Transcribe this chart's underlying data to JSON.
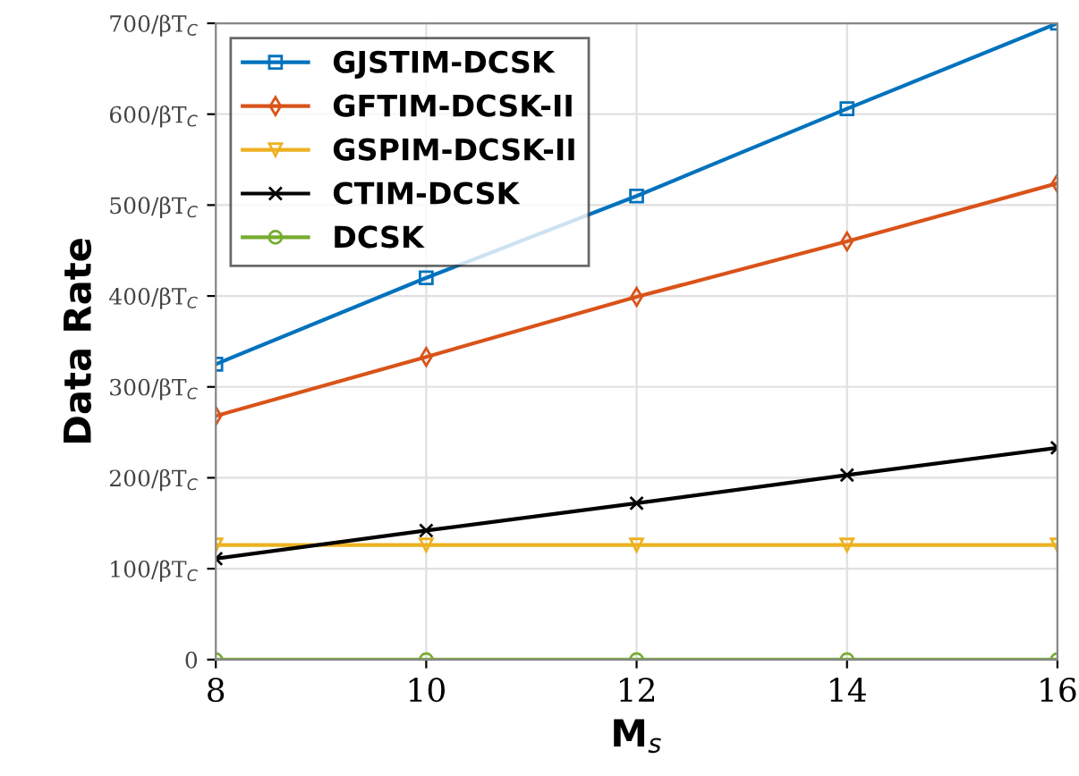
{
  "chart_data": {
    "type": "line",
    "xlabel": "M$_{s}$",
    "ylabel": "Data Rate",
    "x": [
      8,
      10,
      12,
      14,
      16
    ],
    "xlim": [
      8,
      16
    ],
    "xticks": [
      8,
      10,
      12,
      14,
      16
    ],
    "ylim": [
      0,
      700
    ],
    "yticks": [
      0,
      {
        "value": 100,
        "label": "100/βT$_{C}$"
      },
      {
        "value": 200,
        "label": "200/βT$_{C}$"
      },
      {
        "value": 300,
        "label": "300/βT$_{C}$"
      },
      {
        "value": 400,
        "label": "400/βT$_{C}$"
      },
      {
        "value": 500,
        "label": "500/βT$_{C}$"
      },
      {
        "value": 600,
        "label": "600/βT$_{C}$"
      },
      {
        "value": 700,
        "label": "700/βT$_{C}$"
      }
    ],
    "grid": true,
    "legend": "top left",
    "line_style": "solid",
    "series": [
      {
        "name": "GJSTIM-DCSK",
        "color": "#0072bd",
        "marker": "square",
        "values": [
          325,
          420,
          510,
          606,
          700
        ]
      },
      {
        "name": "GFTIM-DCSK-II",
        "color": "#d95319",
        "marker": "diamond",
        "values": [
          268,
          333,
          399,
          460,
          524
        ]
      },
      {
        "name": "GSPIM-DCSK-II",
        "color": "#edb120",
        "marker": "triangle",
        "values": [
          126,
          126,
          126,
          126,
          126
        ]
      },
      {
        "name": "CTIM-DCSK",
        "color": "#000000",
        "marker": "cross",
        "values": [
          111,
          142,
          172,
          203,
          233
        ]
      },
      {
        "name": "DCSK",
        "color": "#77ac30",
        "marker": "circle",
        "values": [
          0,
          0,
          0,
          0,
          0
        ]
      }
    ]
  }
}
